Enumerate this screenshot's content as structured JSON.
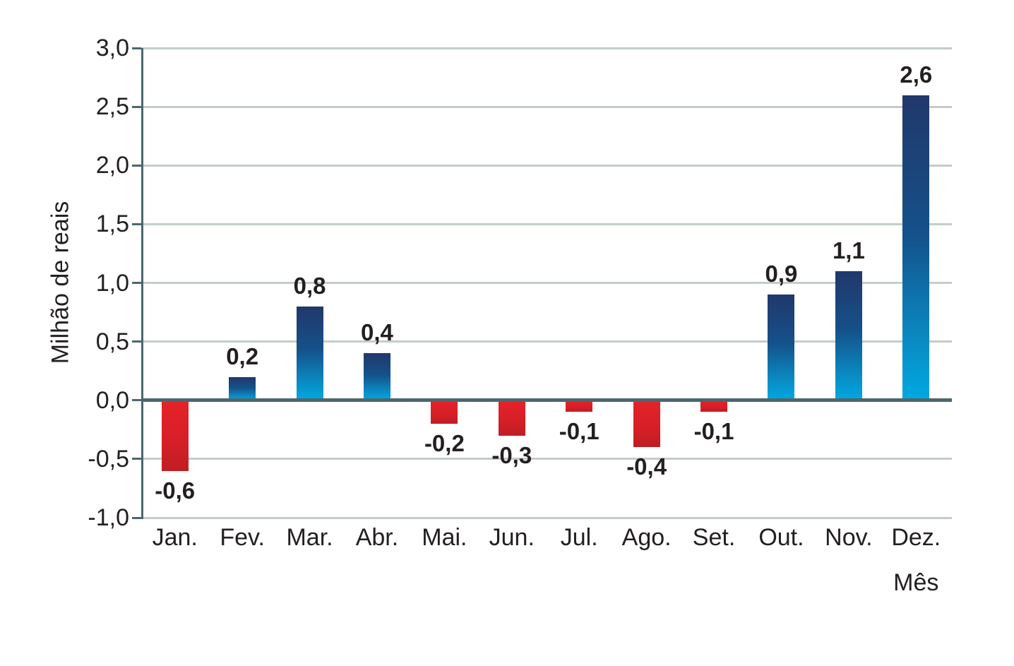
{
  "chart_data": {
    "type": "bar",
    "title": "",
    "xlabel": "Mês",
    "ylabel": "Milhão de reais",
    "categories": [
      "Jan.",
      "Fev.",
      "Mar.",
      "Abr.",
      "Mai.",
      "Jun.",
      "Jul.",
      "Ago.",
      "Set.",
      "Out.",
      "Nov.",
      "Dez."
    ],
    "values": [
      -0.6,
      0.2,
      0.8,
      0.4,
      -0.2,
      -0.3,
      -0.1,
      -0.4,
      -0.1,
      0.9,
      1.1,
      2.6
    ],
    "value_labels": [
      "-0,6",
      "0,2",
      "0,8",
      "0,4",
      "-0,2",
      "-0,3",
      "-0,1",
      "-0,4",
      "-0,1",
      "0,9",
      "1,1",
      "2,6"
    ],
    "ylim": [
      -1.0,
      3.0
    ],
    "ytick_values": [
      3.0,
      2.5,
      2.0,
      1.5,
      1.0,
      0.5,
      0.0,
      -0.5,
      -1.0
    ],
    "ytick_labels": [
      "3,0",
      "2,5",
      "2,0",
      "1,5",
      "1,0",
      "0,5",
      "0,0",
      "-0,5",
      "-1,0"
    ],
    "grid": true,
    "legend": "none",
    "colors": {
      "positive_bar_top": "#21386b",
      "positive_bar_bottom": "#00a9e2",
      "negative_bar_top": "#e42329",
      "negative_bar_bottom": "#bf1e24",
      "zero_line": "#4c676d",
      "axis_line": "#4c676d",
      "gridline": "#c3cdc5",
      "text": "#231f20",
      "background": "#ffffff"
    }
  }
}
